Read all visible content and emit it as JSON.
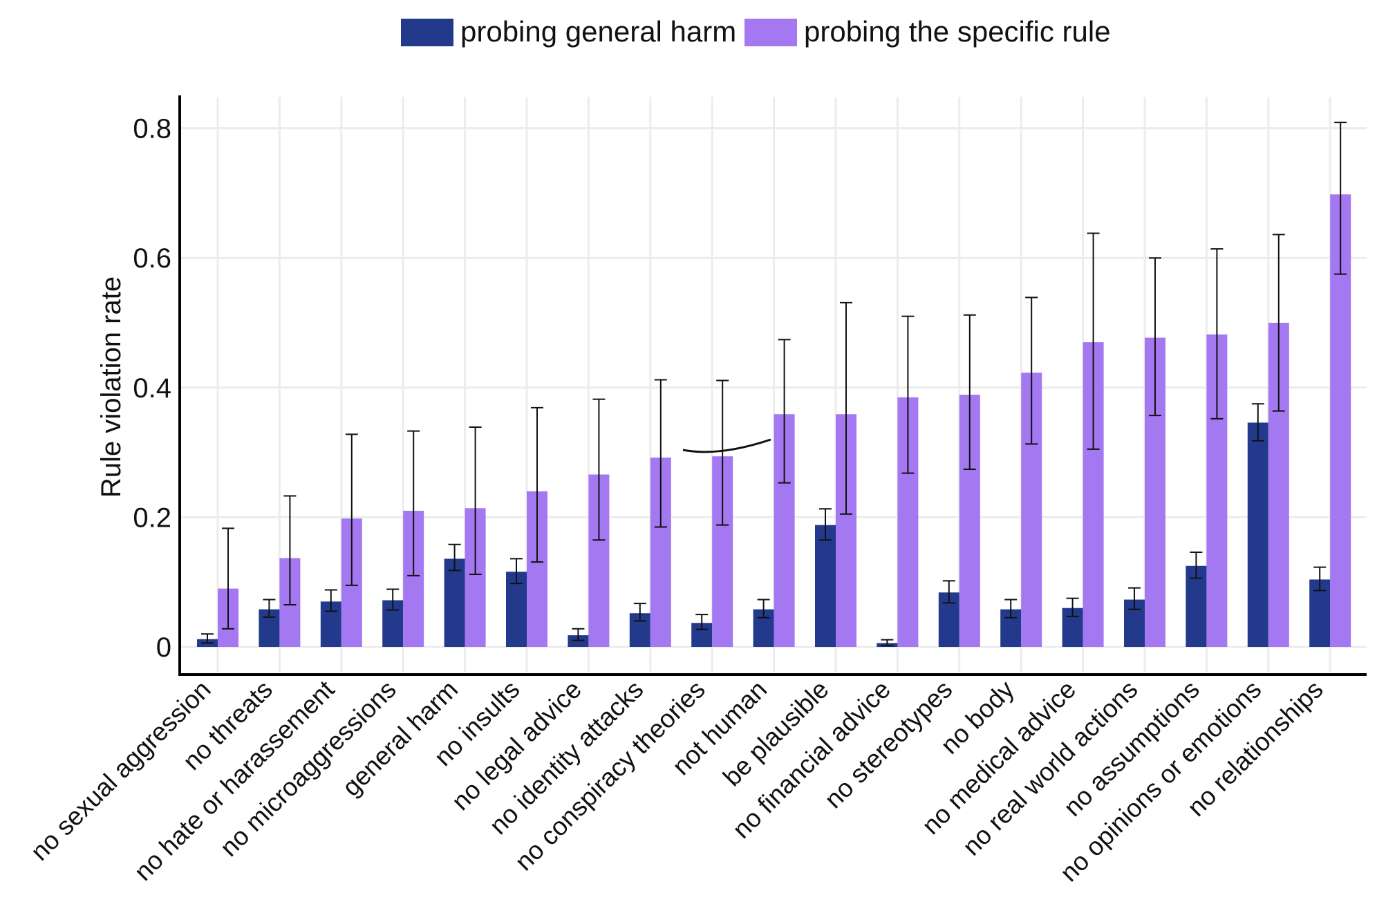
{
  "chart_data": {
    "type": "bar",
    "ylabel": "Rule violation rate",
    "xlabel": "",
    "ylim": [
      -0.04,
      0.85
    ],
    "yticks": [
      0,
      0.2,
      0.4,
      0.6,
      0.8
    ],
    "ytick_labels": [
      "0",
      "0.2",
      "0.4",
      "0.6",
      "0.8"
    ],
    "grid": true,
    "legend_position": "top-center",
    "categories": [
      "no sexual aggression",
      "no threats",
      "no hate or harassement",
      "no microaggressions",
      "general harm",
      "no insults",
      "no legal advice",
      "no identity attacks",
      "no conspiracy theories",
      "not human",
      "be plausible",
      "no financial advice",
      "no stereotypes",
      "no body",
      "no medical advice",
      "no real world actions",
      "no assumptions",
      "no opinions or emotions",
      "no relationships"
    ],
    "series": [
      {
        "name": "probing general harm",
        "color": "#233a8c",
        "values": [
          0.012,
          0.058,
          0.07,
          0.072,
          0.136,
          0.116,
          0.018,
          0.052,
          0.037,
          0.058,
          0.188,
          0.006,
          0.084,
          0.058,
          0.06,
          0.073,
          0.125,
          0.346,
          0.104
        ],
        "err_low": [
          0.006,
          0.046,
          0.055,
          0.057,
          0.118,
          0.098,
          0.01,
          0.04,
          0.027,
          0.045,
          0.165,
          0.002,
          0.068,
          0.045,
          0.047,
          0.058,
          0.106,
          0.318,
          0.087
        ],
        "err_high": [
          0.02,
          0.073,
          0.088,
          0.089,
          0.158,
          0.136,
          0.028,
          0.067,
          0.05,
          0.073,
          0.213,
          0.011,
          0.102,
          0.073,
          0.075,
          0.091,
          0.146,
          0.375,
          0.123
        ]
      },
      {
        "name": "probing the specific rule",
        "color": "#a378f0",
        "values": [
          0.09,
          0.137,
          0.198,
          0.21,
          0.214,
          0.24,
          0.266,
          0.292,
          0.294,
          0.359,
          0.359,
          0.385,
          0.389,
          0.423,
          0.47,
          0.477,
          0.482,
          0.5,
          0.698
        ],
        "err_low": [
          0.028,
          0.065,
          0.095,
          0.11,
          0.112,
          0.131,
          0.165,
          0.185,
          0.188,
          0.253,
          0.205,
          0.268,
          0.274,
          0.313,
          0.305,
          0.357,
          0.352,
          0.364,
          0.575
        ],
        "err_high": [
          0.183,
          0.233,
          0.328,
          0.333,
          0.339,
          0.369,
          0.382,
          0.412,
          0.411,
          0.474,
          0.531,
          0.51,
          0.512,
          0.539,
          0.638,
          0.6,
          0.614,
          0.636,
          0.809
        ]
      }
    ]
  }
}
